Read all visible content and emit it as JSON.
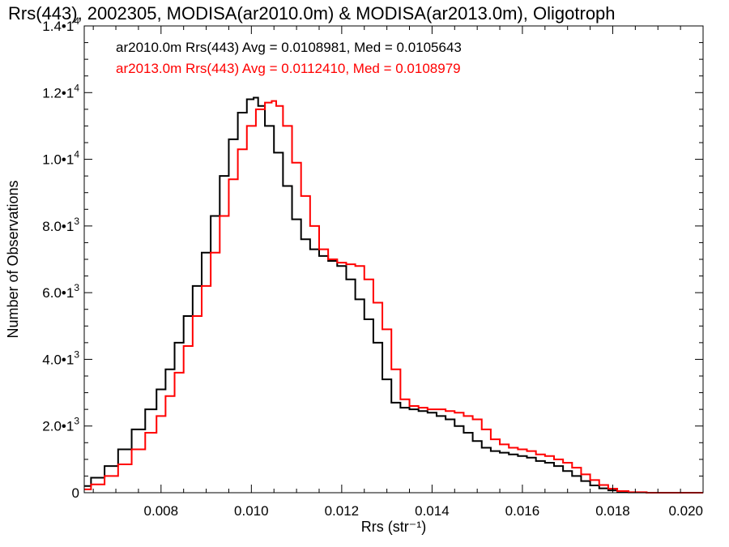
{
  "chart_data": {
    "type": "line",
    "title": "Rrs(443), 2002305, MODISA(ar2010.0m) & MODISA(ar2013.0m), Oligotroph",
    "xlabel": "Rrs (str⁻¹)",
    "ylabel": "Number of Observations",
    "xlim": [
      0.0063,
      0.02
    ],
    "ylim": [
      0,
      14000
    ],
    "x_ticks": [
      {
        "value": 0.008,
        "label": "0.008"
      },
      {
        "value": 0.01,
        "label": "0.010"
      },
      {
        "value": 0.012,
        "label": "0.012"
      },
      {
        "value": 0.014,
        "label": "0.014"
      },
      {
        "value": 0.016,
        "label": "0.016"
      },
      {
        "value": 0.018,
        "label": "0.018"
      },
      {
        "value": 0.02,
        "label": "0.020"
      }
    ],
    "y_ticks": [
      {
        "value": 0,
        "mant": "0",
        "exp": ""
      },
      {
        "value": 2000,
        "mant": "2.0•1",
        "exp": "3"
      },
      {
        "value": 4000,
        "mant": "4.0•1",
        "exp": "3"
      },
      {
        "value": 6000,
        "mant": "6.0•1",
        "exp": "3"
      },
      {
        "value": 8000,
        "mant": "8.0•1",
        "exp": "3"
      },
      {
        "value": 10000,
        "mant": "1.0•1",
        "exp": "4"
      },
      {
        "value": 12000,
        "mant": "1.2•1",
        "exp": "4"
      },
      {
        "value": 14000,
        "mant": "1.4•1",
        "exp": "4"
      }
    ],
    "grid": false,
    "legend_position": "top-left",
    "series": [
      {
        "name": "ar2010.0m Rrs(443) Avg = 0.0108981, Med = 0.0105643",
        "color": "#000000",
        "x": [
          0.0063,
          0.0066,
          0.0069,
          0.0072,
          0.0075,
          0.0078,
          0.008,
          0.0082,
          0.0084,
          0.0086,
          0.0088,
          0.009,
          0.0092,
          0.0094,
          0.0096,
          0.0098,
          0.01,
          0.0101,
          0.0102,
          0.0104,
          0.0106,
          0.0108,
          0.011,
          0.0112,
          0.0114,
          0.0116,
          0.0118,
          0.012,
          0.0122,
          0.0124,
          0.0126,
          0.0128,
          0.013,
          0.0132,
          0.0134,
          0.0136,
          0.0138,
          0.014,
          0.0142,
          0.0144,
          0.0146,
          0.0148,
          0.015,
          0.0152,
          0.0154,
          0.0156,
          0.0158,
          0.016,
          0.0162,
          0.0164,
          0.0166,
          0.0168,
          0.017,
          0.0172,
          0.0174,
          0.0176,
          0.0178,
          0.018,
          0.0182,
          0.0185,
          0.019,
          0.0195,
          0.02
        ],
        "values": [
          200,
          450,
          800,
          1300,
          1900,
          2500,
          3100,
          3700,
          4500,
          5300,
          6200,
          7200,
          8300,
          9500,
          10600,
          11400,
          11800,
          11850,
          11600,
          11000,
          10200,
          9200,
          8200,
          7600,
          7300,
          7100,
          6950,
          6800,
          6400,
          5800,
          5200,
          4500,
          3400,
          2700,
          2550,
          2500,
          2450,
          2400,
          2300,
          2200,
          2000,
          1800,
          1550,
          1350,
          1250,
          1200,
          1150,
          1100,
          1050,
          950,
          900,
          800,
          650,
          500,
          350,
          220,
          130,
          70,
          30,
          10,
          0,
          0,
          0
        ]
      },
      {
        "name": "ar2013.0m Rrs(443) Avg = 0.0112410, Med = 0.0108979",
        "color": "#ff0000",
        "x": [
          0.0063,
          0.0066,
          0.0069,
          0.0072,
          0.0075,
          0.0078,
          0.008,
          0.0082,
          0.0084,
          0.0086,
          0.0088,
          0.009,
          0.0092,
          0.0094,
          0.0096,
          0.0098,
          0.01,
          0.0102,
          0.0104,
          0.0105,
          0.0106,
          0.0108,
          0.011,
          0.0112,
          0.0114,
          0.0116,
          0.0118,
          0.012,
          0.0122,
          0.0124,
          0.0126,
          0.0128,
          0.013,
          0.0132,
          0.0134,
          0.0136,
          0.0138,
          0.014,
          0.0142,
          0.0144,
          0.0146,
          0.0148,
          0.015,
          0.0152,
          0.0154,
          0.0156,
          0.0158,
          0.016,
          0.0162,
          0.0164,
          0.0166,
          0.0168,
          0.017,
          0.0172,
          0.0174,
          0.0176,
          0.0178,
          0.018,
          0.0182,
          0.0185,
          0.019,
          0.0195,
          0.02
        ],
        "values": [
          100,
          250,
          500,
          850,
          1300,
          1800,
          2300,
          2900,
          3600,
          4400,
          5300,
          6200,
          7200,
          8300,
          9400,
          10300,
          11000,
          11500,
          11700,
          11750,
          11600,
          11000,
          9900,
          8900,
          8000,
          7300,
          7000,
          6900,
          6850,
          6800,
          6400,
          5700,
          4900,
          3700,
          2800,
          2600,
          2550,
          2500,
          2500,
          2450,
          2400,
          2300,
          2200,
          1900,
          1600,
          1450,
          1350,
          1300,
          1250,
          1150,
          1100,
          1000,
          900,
          750,
          550,
          380,
          230,
          120,
          50,
          15,
          0,
          0,
          0
        ]
      }
    ]
  }
}
